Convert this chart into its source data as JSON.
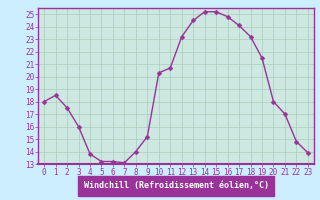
{
  "x": [
    0,
    1,
    2,
    3,
    4,
    5,
    6,
    7,
    8,
    9,
    10,
    11,
    12,
    13,
    14,
    15,
    16,
    17,
    18,
    19,
    20,
    21,
    22,
    23
  ],
  "y": [
    18,
    18.5,
    17.5,
    16,
    13.8,
    13.2,
    13.2,
    13.1,
    14.0,
    15.2,
    20.3,
    20.7,
    23.2,
    24.5,
    25.2,
    25.2,
    24.8,
    24.1,
    23.2,
    21.5,
    18.0,
    17.0,
    14.8,
    13.9
  ],
  "line_color": "#993399",
  "marker_color": "#993399",
  "bg_color": "#cceeff",
  "plot_bg_color": "#cce8e0",
  "xlabel_bg_color": "#993399",
  "grid_color": "#aaccbb",
  "xlabel": "Windchill (Refroidissement éolien,°C)",
  "xlabel_color": "#ffffff",
  "tick_color": "#993399",
  "title": "",
  "xlim": [
    -0.5,
    23.5
  ],
  "ylim": [
    13,
    25.5
  ],
  "yticks": [
    13,
    14,
    15,
    16,
    17,
    18,
    19,
    20,
    21,
    22,
    23,
    24,
    25
  ],
  "xticks": [
    0,
    1,
    2,
    3,
    4,
    5,
    6,
    7,
    8,
    9,
    10,
    11,
    12,
    13,
    14,
    15,
    16,
    17,
    18,
    19,
    20,
    21,
    22,
    23
  ],
  "tick_fontsize": 5.5,
  "xlabel_fontsize": 6.0,
  "line_width": 1.0,
  "marker_size": 2.5
}
